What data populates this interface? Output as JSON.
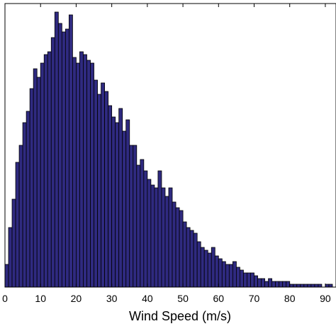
{
  "chart_data": {
    "type": "bar",
    "title": "",
    "xlabel": "Wind Speed (m/s)",
    "ylabel": "",
    "xlim": [
      0,
      93
    ],
    "ylim": [
      0,
      100
    ],
    "bin_width": 1,
    "grid": false,
    "x_ticks": [
      0,
      10,
      20,
      30,
      40,
      50,
      60,
      70,
      80,
      90
    ],
    "x_tick_labels": [
      "0",
      "10",
      "20",
      "30",
      "40",
      "50",
      "60",
      "70",
      "80",
      "90"
    ],
    "bar_color": "#2f2a80",
    "bar_edge_color": "#000000",
    "bins_start": [
      0,
      1,
      2,
      3,
      4,
      5,
      6,
      7,
      8,
      9,
      10,
      11,
      12,
      13,
      14,
      15,
      16,
      17,
      18,
      19,
      20,
      21,
      22,
      23,
      24,
      25,
      26,
      27,
      28,
      29,
      30,
      31,
      32,
      33,
      34,
      35,
      36,
      37,
      38,
      39,
      40,
      41,
      42,
      43,
      44,
      45,
      46,
      47,
      48,
      49,
      50,
      51,
      52,
      53,
      54,
      55,
      56,
      57,
      58,
      59,
      60,
      61,
      62,
      63,
      64,
      65,
      66,
      67,
      68,
      69,
      70,
      71,
      72,
      73,
      74,
      75,
      76,
      77,
      78,
      79,
      80,
      81,
      82,
      83,
      84,
      85,
      86,
      87,
      88,
      89,
      90,
      91,
      92
    ],
    "values": [
      8,
      21,
      31,
      44,
      50,
      58,
      62,
      70,
      77,
      74,
      79,
      82,
      83,
      88,
      97,
      93,
      90,
      91,
      96,
      81,
      79,
      83,
      82,
      80,
      79,
      73,
      68,
      72,
      69,
      64,
      60,
      58,
      63,
      55,
      59,
      50,
      50,
      43,
      45,
      41,
      38,
      36,
      35,
      41,
      35,
      32,
      35,
      30,
      28,
      27,
      23,
      21,
      20,
      19,
      16,
      14,
      13,
      12,
      14,
      11,
      10,
      9,
      8,
      8,
      9,
      7,
      6,
      5,
      5,
      5,
      4,
      3,
      3,
      2,
      3,
      2,
      2,
      2,
      2,
      2,
      1,
      1,
      1,
      1,
      1,
      1,
      1,
      1,
      1,
      0,
      1,
      1,
      0
    ]
  }
}
